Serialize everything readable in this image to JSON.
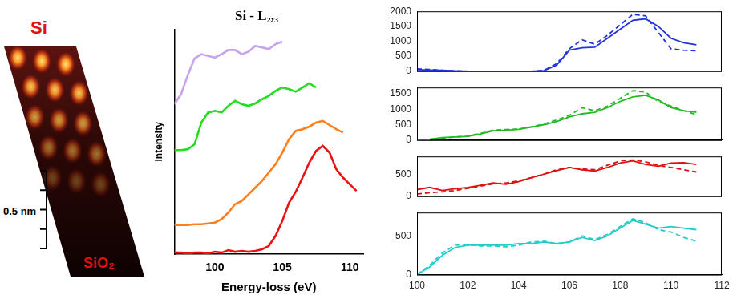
{
  "image_labels": {
    "top": "Si",
    "bottom": "SiO₂",
    "scale_bar": "0.5 nm"
  },
  "chart_data": [
    {
      "type": "line",
      "title": "Si - L₂,₃",
      "y_label": "Intensity",
      "x_label": "Energy-loss (eV)",
      "x": [
        97,
        97.5,
        98,
        98.5,
        99,
        99.5,
        100,
        100.5,
        101,
        101.5,
        102,
        102.5,
        103,
        103.5,
        104,
        104.5,
        105,
        105.5,
        106,
        106.5,
        107,
        107.5,
        108,
        108.5,
        109,
        109.5,
        110,
        110.5
      ],
      "series": [
        {
          "color": "#c8a2f0",
          "line_style": "solid",
          "values": [
            180,
            192,
            215,
            235,
            240,
            238,
            236,
            240,
            245,
            245,
            240,
            243,
            250,
            248,
            246,
            252,
            255,
            null,
            null,
            null,
            null,
            null,
            null,
            null,
            null,
            null,
            null,
            null
          ]
        },
        {
          "color": "#22dd22",
          "line_style": "solid",
          "values": [
            125,
            125,
            126,
            132,
            158,
            170,
            172,
            170,
            178,
            184,
            180,
            178,
            181,
            186,
            190,
            196,
            200,
            198,
            195,
            200,
            205,
            200,
            null,
            null,
            null,
            null,
            null,
            null
          ]
        },
        {
          "color": "#ff7f1f",
          "line_style": "solid",
          "values": [
            35,
            35,
            35,
            36,
            36,
            37,
            38,
            42,
            50,
            60,
            64,
            72,
            80,
            88,
            98,
            108,
            122,
            138,
            148,
            150,
            153,
            158,
            160,
            155,
            150,
            146,
            null,
            null
          ]
        },
        {
          "color": "#ee1111",
          "line_style": "solid",
          "values": [
            2,
            2,
            1,
            2,
            2,
            1,
            3,
            2,
            5,
            3,
            4,
            3,
            4,
            6,
            10,
            22,
            40,
            62,
            75,
            92,
            110,
            124,
            130,
            122,
            102,
            92,
            84,
            76
          ]
        }
      ],
      "xlim": [
        97,
        111
      ],
      "xticks": [
        100,
        105,
        110
      ],
      "ylim": [
        0,
        270
      ],
      "tick_labels": "x",
      "grid": false
    },
    {
      "type": "line",
      "x": [
        100,
        100.5,
        101,
        101.5,
        102,
        102.5,
        103,
        103.5,
        104,
        104.5,
        105,
        105.5,
        106,
        106.5,
        107,
        107.5,
        108,
        108.5,
        109,
        109.5,
        110,
        110.5,
        111
      ],
      "series": [
        {
          "color": "#2233dd",
          "line_style": "solid",
          "values": [
            50,
            40,
            30,
            10,
            0,
            0,
            0,
            0,
            0,
            0,
            20,
            200,
            700,
            780,
            800,
            1100,
            1400,
            1700,
            1750,
            1500,
            1100,
            950,
            880
          ]
        },
        {
          "color": "#2233dd",
          "line_style": "dashed",
          "values": [
            80,
            60,
            30,
            10,
            0,
            0,
            0,
            0,
            0,
            0,
            30,
            250,
            750,
            1050,
            900,
            1200,
            1550,
            1900,
            1850,
            1300,
            750,
            700,
            680
          ]
        }
      ],
      "xlim": [
        100,
        112
      ],
      "xticks": [
        100,
        102,
        104,
        106,
        108,
        110,
        112
      ],
      "ylim": [
        0,
        2000
      ],
      "yticks": [
        0,
        500,
        1000,
        1500,
        2000
      ],
      "tick_labels": "y",
      "grid": false
    },
    {
      "type": "line",
      "x": [
        100,
        100.5,
        101,
        101.5,
        102,
        102.5,
        103,
        103.5,
        104,
        104.5,
        105,
        105.5,
        106,
        106.5,
        107,
        107.5,
        108,
        108.5,
        109,
        109.5,
        110,
        110.5,
        111
      ],
      "series": [
        {
          "color": "#22bb22",
          "line_style": "solid",
          "values": [
            0,
            30,
            80,
            100,
            120,
            200,
            300,
            320,
            350,
            420,
            500,
            600,
            750,
            850,
            900,
            1050,
            1250,
            1400,
            1450,
            1300,
            1050,
            950,
            900
          ]
        },
        {
          "color": "#22bb22",
          "line_style": "dashed",
          "values": [
            0,
            20,
            60,
            100,
            130,
            220,
            320,
            340,
            360,
            430,
            520,
            650,
            800,
            1050,
            950,
            1100,
            1350,
            1600,
            1550,
            1250,
            1100,
            950,
            820
          ]
        }
      ],
      "xlim": [
        100,
        112
      ],
      "xticks": [
        100,
        102,
        104,
        106,
        108,
        110,
        112
      ],
      "ylim": [
        0,
        1700
      ],
      "yticks": [
        0,
        500,
        1000,
        1500
      ],
      "tick_labels": "y",
      "grid": false
    },
    {
      "type": "line",
      "x": [
        100,
        100.5,
        101,
        101.5,
        102,
        102.5,
        103,
        103.5,
        104,
        104.5,
        105,
        105.5,
        106,
        106.5,
        107,
        107.5,
        108,
        108.5,
        109,
        109.5,
        110,
        110.5,
        111
      ],
      "series": [
        {
          "color": "#dd1111",
          "line_style": "solid",
          "values": [
            150,
            200,
            130,
            170,
            200,
            250,
            300,
            270,
            330,
            420,
            500,
            580,
            650,
            600,
            570,
            650,
            750,
            800,
            720,
            680,
            750,
            760,
            720
          ]
        },
        {
          "color": "#dd1111",
          "line_style": "dashed",
          "values": [
            50,
            80,
            100,
            130,
            180,
            230,
            280,
            300,
            350,
            420,
            500,
            600,
            650,
            620,
            600,
            700,
            800,
            820,
            780,
            700,
            650,
            600,
            550
          ]
        }
      ],
      "xlim": [
        100,
        112
      ],
      "xticks": [
        100,
        102,
        104,
        106,
        108,
        110,
        112
      ],
      "ylim": [
        0,
        900
      ],
      "yticks": [
        0,
        500
      ],
      "tick_labels": "y",
      "grid": false
    },
    {
      "type": "line",
      "x": [
        100,
        100.5,
        101,
        101.5,
        102,
        102.5,
        103,
        103.5,
        104,
        104.5,
        105,
        105.5,
        106,
        106.5,
        107,
        107.5,
        108,
        108.5,
        109,
        109.5,
        110,
        110.5,
        111
      ],
      "series": [
        {
          "color": "#22cccc",
          "line_style": "solid",
          "values": [
            0,
            100,
            250,
            350,
            380,
            380,
            380,
            380,
            400,
            400,
            420,
            400,
            420,
            480,
            440,
            500,
            600,
            700,
            650,
            600,
            620,
            600,
            580
          ]
        },
        {
          "color": "#22cccc",
          "line_style": "dashed",
          "values": [
            0,
            120,
            280,
            380,
            390,
            370,
            370,
            360,
            380,
            420,
            430,
            400,
            420,
            500,
            450,
            520,
            620,
            720,
            670,
            580,
            550,
            480,
            430
          ]
        }
      ],
      "xlim": [
        100,
        112
      ],
      "xticks": [
        100,
        102,
        104,
        106,
        108,
        110,
        112
      ],
      "ylim": [
        0,
        800
      ],
      "yticks": [
        0,
        500
      ],
      "tick_labels": true,
      "grid": false
    }
  ]
}
